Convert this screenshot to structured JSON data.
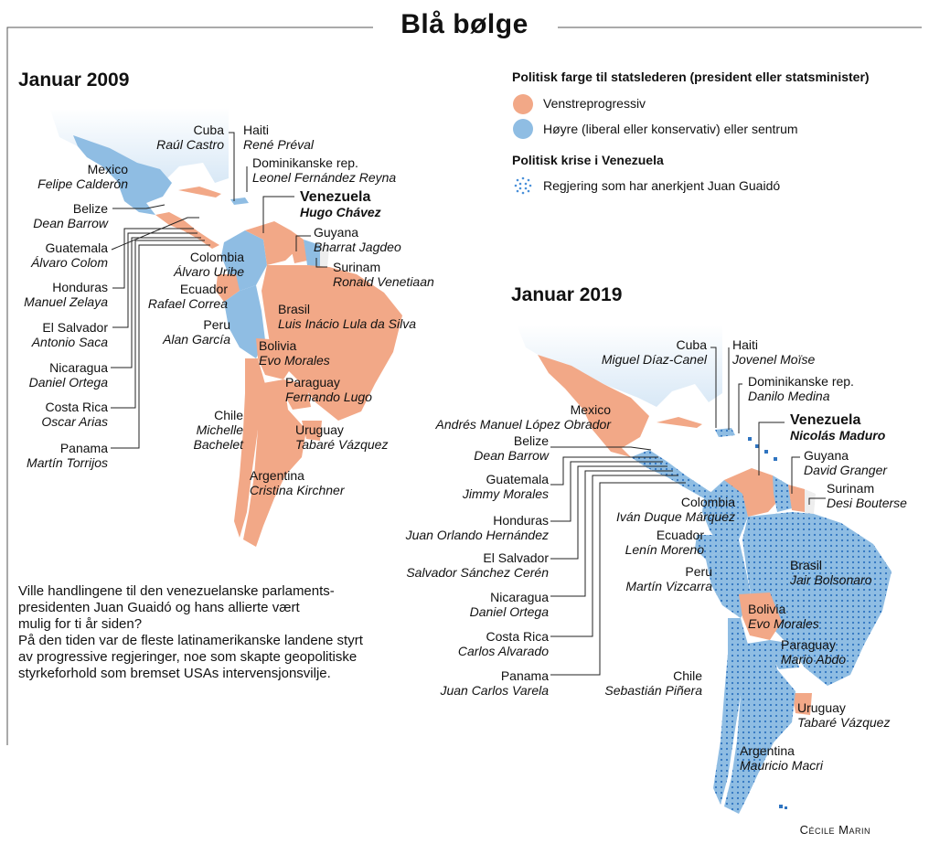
{
  "title": "Blå bølge",
  "legend": {
    "heading": "Politisk farge til statslederen (president eller statsminister)",
    "left": "Venstreprogressiv",
    "right": "Høyre (liberal eller konservativ) eller sentrum",
    "crisis_heading": "Politisk krise i Venezuela",
    "crisis_item": "Regjering som har anerkjent Juan Guaidó",
    "colors": {
      "left": "#f2a887",
      "right": "#8fbde3",
      "crisis": "#4a90d9"
    }
  },
  "map2009": {
    "heading": "Januar 2009",
    "countries": [
      {
        "name": "Cuba",
        "leader": "Raúl Castro"
      },
      {
        "name": "Haiti",
        "leader": "René Préval"
      },
      {
        "name": "Dominikanske rep.",
        "leader": "Leonel Fernández Reyna"
      },
      {
        "name": "Venezuela",
        "leader": "Hugo Chávez"
      },
      {
        "name": "Mexico",
        "leader": "Felipe Calderón"
      },
      {
        "name": "Belize",
        "leader": "Dean Barrow"
      },
      {
        "name": "Guatemala",
        "leader": "Álvaro Colom"
      },
      {
        "name": "Honduras",
        "leader": "Manuel Zelaya"
      },
      {
        "name": "El Salvador",
        "leader": "Antonio Saca"
      },
      {
        "name": "Nicaragua",
        "leader": "Daniel Ortega"
      },
      {
        "name": "Costa Rica",
        "leader": "Oscar Arias"
      },
      {
        "name": "Panama",
        "leader": "Martín Torrijos"
      },
      {
        "name": "Guyana",
        "leader": "Bharrat Jagdeo"
      },
      {
        "name": "Surinam",
        "leader": "Ronald Venetiaan"
      },
      {
        "name": "Colombia",
        "leader": "Álvaro Uribe"
      },
      {
        "name": "Ecuador",
        "leader": "Rafael Correa"
      },
      {
        "name": "Peru",
        "leader": "Alan García"
      },
      {
        "name": "Brasil",
        "leader": "Luis Inácio Lula da Silva"
      },
      {
        "name": "Bolivia",
        "leader": "Evo Morales"
      },
      {
        "name": "Paraguay",
        "leader": "Fernando Lugo"
      },
      {
        "name": "Chile",
        "leader": "Michelle\nBachelet"
      },
      {
        "name": "Uruguay",
        "leader": "Tabaré Vázquez"
      },
      {
        "name": "Argentina",
        "leader": "Cristina Kirchner"
      }
    ]
  },
  "map2019": {
    "heading": "Januar 2019",
    "countries": [
      {
        "name": "Cuba",
        "leader": "Miguel Díaz-Canel"
      },
      {
        "name": "Haiti",
        "leader": "Jovenel Moïse"
      },
      {
        "name": "Dominikanske rep.",
        "leader": "Danilo Medina"
      },
      {
        "name": "Mexico",
        "leader": "Andrés Manuel López Obrador"
      },
      {
        "name": "Venezuela",
        "leader": "Nicolás Maduro"
      },
      {
        "name": "Belize",
        "leader": "Dean Barrow"
      },
      {
        "name": "Guyana",
        "leader": "David Granger"
      },
      {
        "name": "Guatemala",
        "leader": "Jimmy Morales"
      },
      {
        "name": "Surinam",
        "leader": "Desi Bouterse"
      },
      {
        "name": "Colombia",
        "leader": "Iván Duque Márquez"
      },
      {
        "name": "Honduras",
        "leader": "Juan Orlando Hernández"
      },
      {
        "name": "Ecuador",
        "leader": "Lenín Moreno"
      },
      {
        "name": "El Salvador",
        "leader": "Salvador Sánchez Cerén"
      },
      {
        "name": "Peru",
        "leader": "Martín Vizcarra"
      },
      {
        "name": "Brasil",
        "leader": "Jair Bolsonaro"
      },
      {
        "name": "Nicaragua",
        "leader": "Daniel Ortega"
      },
      {
        "name": "Bolivia",
        "leader": "Evo Morales"
      },
      {
        "name": "Costa Rica",
        "leader": "Carlos Alvarado"
      },
      {
        "name": "Paraguay",
        "leader": "Mario Abdo"
      },
      {
        "name": "Panama",
        "leader": "Juan Carlos Varela"
      },
      {
        "name": "Chile",
        "leader": "Sebastián Piñera"
      },
      {
        "name": "Uruguay",
        "leader": "Tabaré Vázquez"
      },
      {
        "name": "Argentina",
        "leader": "Mauricio Macri"
      }
    ]
  },
  "intro": {
    "line1": "Ville handlingene til den venezuelanske parlaments-",
    "line2": "presidenten Juan Guaidó og hans allierte vært",
    "line3": "mulig for ti år siden?",
    "line4": "På den tiden var de fleste latinamerikanske landene styrt",
    "line5": "av progressive regjeringer, noe som skapte geopolitiske",
    "line6": "styrkeforhold som bremset USAs intervensjonsvilje."
  },
  "credit": "Cécile Marin"
}
